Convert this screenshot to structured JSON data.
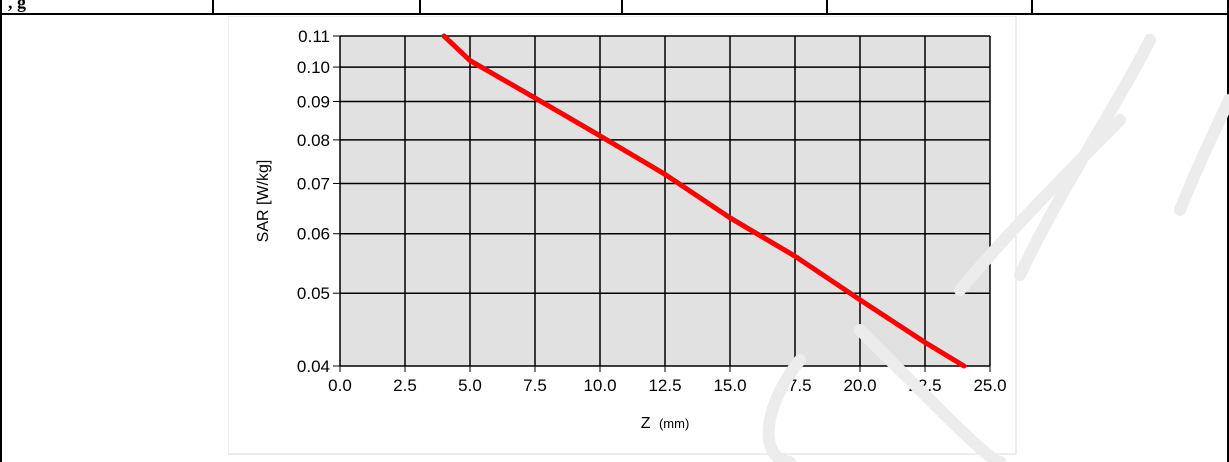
{
  "header": {
    "visible_text": ", g"
  },
  "chart_data": {
    "type": "line",
    "xlabel": "Z",
    "xlabel_unit": "(mm)",
    "ylabel": "SAR [W/kg]",
    "xlim": [
      0,
      25
    ],
    "ylim": [
      0.04,
      0.11
    ],
    "y_scale": "log",
    "x_ticks": [
      "0.0",
      "2.5",
      "5.0",
      "7.5",
      "10.0",
      "12.5",
      "15.0",
      "17.5",
      "20.0",
      "22.5",
      "25.0"
    ],
    "y_ticks": [
      "0.04",
      "0.05",
      "0.06",
      "0.07",
      "0.08",
      "0.09",
      "0.10",
      "0.11"
    ],
    "grid": true,
    "background": "#e1e1e1",
    "series": [
      {
        "color": "#ff0000",
        "x": [
          4.0,
          5.0,
          7.5,
          10.0,
          12.5,
          15.0,
          17.5,
          20.0,
          22.5,
          24.0
        ],
        "y": [
          0.11,
          0.102,
          0.091,
          0.081,
          0.072,
          0.063,
          0.056,
          0.049,
          0.043,
          0.04
        ]
      }
    ]
  }
}
